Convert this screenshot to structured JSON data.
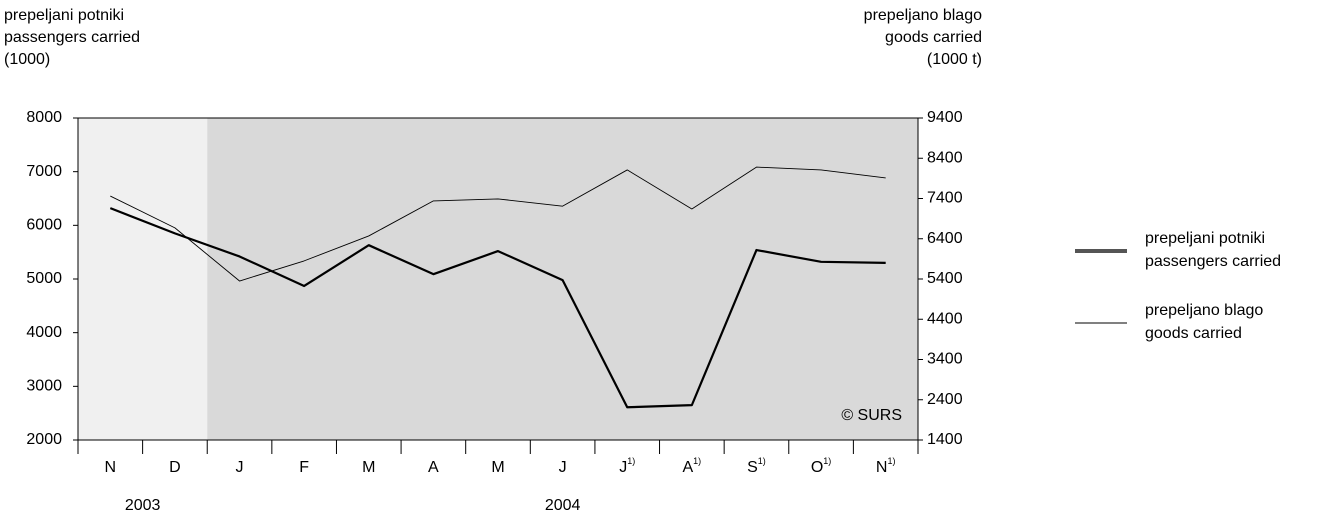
{
  "chart_data": {
    "type": "line",
    "y_title": [
      "prepeljani potniki",
      "passengers carried",
      "(1000)"
    ],
    "y2_title": [
      "prepeljano blago",
      "goods carried",
      "(1000 t)"
    ],
    "categories": [
      "N",
      "D",
      "J",
      "F",
      "M",
      "A",
      "M",
      "J",
      "J",
      "A",
      "S",
      "O",
      "N"
    ],
    "category_footnotes": [
      null,
      null,
      null,
      null,
      null,
      null,
      null,
      null,
      "1)",
      "1)",
      "1)",
      "1)",
      "1)"
    ],
    "years": [
      "2003",
      "2004"
    ],
    "annotation": "© SURS",
    "ylim": [
      2000,
      8000
    ],
    "yticks": [
      2000,
      3000,
      4000,
      5000,
      6000,
      7000,
      8000
    ],
    "y2lim": [
      1400,
      9400
    ],
    "y2ticks": [
      1400,
      2400,
      3400,
      4400,
      5400,
      6400,
      7400,
      8400,
      9400
    ],
    "shade_colors": [
      "#f0f0f0",
      "#d9d9d9"
    ],
    "series": [
      {
        "name": [
          "prepeljani potniki",
          "passengers carried"
        ],
        "color": "#000000",
        "legend_color": "#555555",
        "width": 2.2,
        "values": [
          6320,
          5850,
          5420,
          4870,
          5630,
          5090,
          5520,
          4980,
          2610,
          2650,
          5540,
          5320,
          5300
        ]
      },
      {
        "name": [
          "prepeljano blago",
          "goods carried"
        ],
        "color": "#000000",
        "legend_color": "#000000",
        "width": 0.9,
        "axis": "y2",
        "values": [
          7460,
          6670,
          5350,
          5850,
          6470,
          7340,
          7390,
          7210,
          8110,
          7140,
          8180,
          8110,
          7910
        ]
      }
    ]
  }
}
